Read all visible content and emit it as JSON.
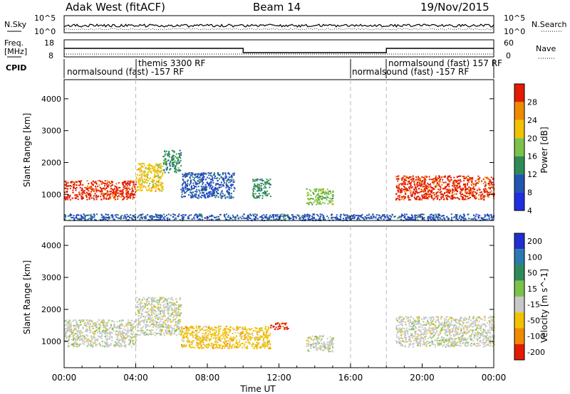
{
  "header": {
    "station": "Adak West (fitACF)",
    "beam": "Beam 14",
    "date": "19/Nov/2015"
  },
  "nsky": {
    "label": "N.Sky",
    "tick_top": "10^5",
    "tick_bottom": "10^0",
    "right_tick_top": "10^5",
    "right_tick_bottom": "10^0",
    "right_label": "N.Search"
  },
  "freq": {
    "label_line1": "Freq.",
    "label_line2": "[MHz]",
    "tick_top": "18",
    "tick_bottom": "8",
    "right_tick_top": "60",
    "right_tick_bottom": "0",
    "right_label": "Nave"
  },
  "cpid": {
    "label": "CPID",
    "segments": [
      {
        "text": "normalsound (fast) -157 RF",
        "start_h": 0.0
      },
      {
        "text": "themis 3300 RF",
        "start_h": 4.0
      },
      {
        "text": "normalsound (fast) -157 RF",
        "start_h": 16.0
      },
      {
        "text": "normalsound (fast) 157 RF",
        "start_h": 18.0
      }
    ]
  },
  "xaxis": {
    "title": "Time UT",
    "ticks": [
      "00:00",
      "04:00",
      "08:00",
      "12:00",
      "16:00",
      "20:00",
      "00:00"
    ]
  },
  "power_panel": {
    "ylabel": "Slant Range [km]",
    "yticks": [
      "1000",
      "2000",
      "3000",
      "4000"
    ],
    "colorbar_label": "Power [dB]",
    "colorbar_ticks": [
      "4",
      "8",
      "12",
      "16",
      "20",
      "24",
      "28"
    ],
    "colors": [
      "#1f2fe0",
      "#2255b0",
      "#2e8b57",
      "#7cc24a",
      "#f2c200",
      "#f08a00",
      "#e31b00"
    ]
  },
  "velocity_panel": {
    "ylabel": "Slant Range [km]",
    "yticks": [
      "1000",
      "2000",
      "3000",
      "4000"
    ],
    "colorbar_label": "Velocity [m s^-1]",
    "colorbar_ticks": [
      "200",
      "100",
      "50",
      "15",
      "-15",
      "-50",
      "-100",
      "-200"
    ],
    "colors": [
      "#1f2fd0",
      "#2a7ab0",
      "#2e8b57",
      "#7cc24a",
      "#c8c8c8",
      "#f2c200",
      "#f08a00",
      "#e31b00"
    ]
  },
  "chart_data": {
    "type": "heatmap",
    "x_range_hours": [
      0,
      24
    ],
    "y_range_km": [
      180,
      4600
    ],
    "dashed_time_lines_h": [
      4.0,
      16.0,
      18.0
    ],
    "freq_series": {
      "name": "Freq.",
      "segments": [
        {
          "from_h": 0,
          "to_h": 10,
          "value_mhz": 13
        },
        {
          "from_h": 10,
          "to_h": 18,
          "value_mhz": 10.5
        },
        {
          "from_h": 18,
          "to_h": 24,
          "value_mhz": 13
        }
      ]
    },
    "power_regions": [
      {
        "t0": 0.0,
        "t1": 4.0,
        "r0": 850,
        "r1": 1450,
        "level": 28
      },
      {
        "t0": 4.0,
        "t1": 5.5,
        "r0": 1100,
        "r1": 2000,
        "level": 20
      },
      {
        "t0": 5.5,
        "t1": 6.5,
        "r0": 1700,
        "r1": 2400,
        "level": 12
      },
      {
        "t0": 6.5,
        "t1": 9.5,
        "r0": 900,
        "r1": 1700,
        "level": 8
      },
      {
        "t0": 10.5,
        "t1": 11.5,
        "r0": 900,
        "r1": 1500,
        "level": 12
      },
      {
        "t0": 13.5,
        "t1": 15.0,
        "r0": 700,
        "r1": 1200,
        "level": 16
      },
      {
        "t0": 18.5,
        "t1": 24.0,
        "r0": 850,
        "r1": 1600,
        "level": 28
      },
      {
        "t0": 0.0,
        "t1": 24.0,
        "r0": 200,
        "r1": 400,
        "level": 8
      }
    ],
    "velocity_regions": [
      {
        "t0": 0.0,
        "t1": 4.0,
        "r0": 850,
        "r1": 1700,
        "level": -15
      },
      {
        "t0": 4.0,
        "t1": 6.5,
        "r0": 1200,
        "r1": 2400,
        "level": -15
      },
      {
        "t0": 6.5,
        "t1": 11.5,
        "r0": 800,
        "r1": 1500,
        "level": -50
      },
      {
        "t0": 11.5,
        "t1": 12.5,
        "r0": 1400,
        "r1": 1600,
        "level": -200
      },
      {
        "t0": 13.5,
        "t1": 15.0,
        "r0": 700,
        "r1": 1200,
        "level": -15
      },
      {
        "t0": 18.5,
        "t1": 24.0,
        "r0": 850,
        "r1": 1800,
        "level": -15
      }
    ]
  }
}
